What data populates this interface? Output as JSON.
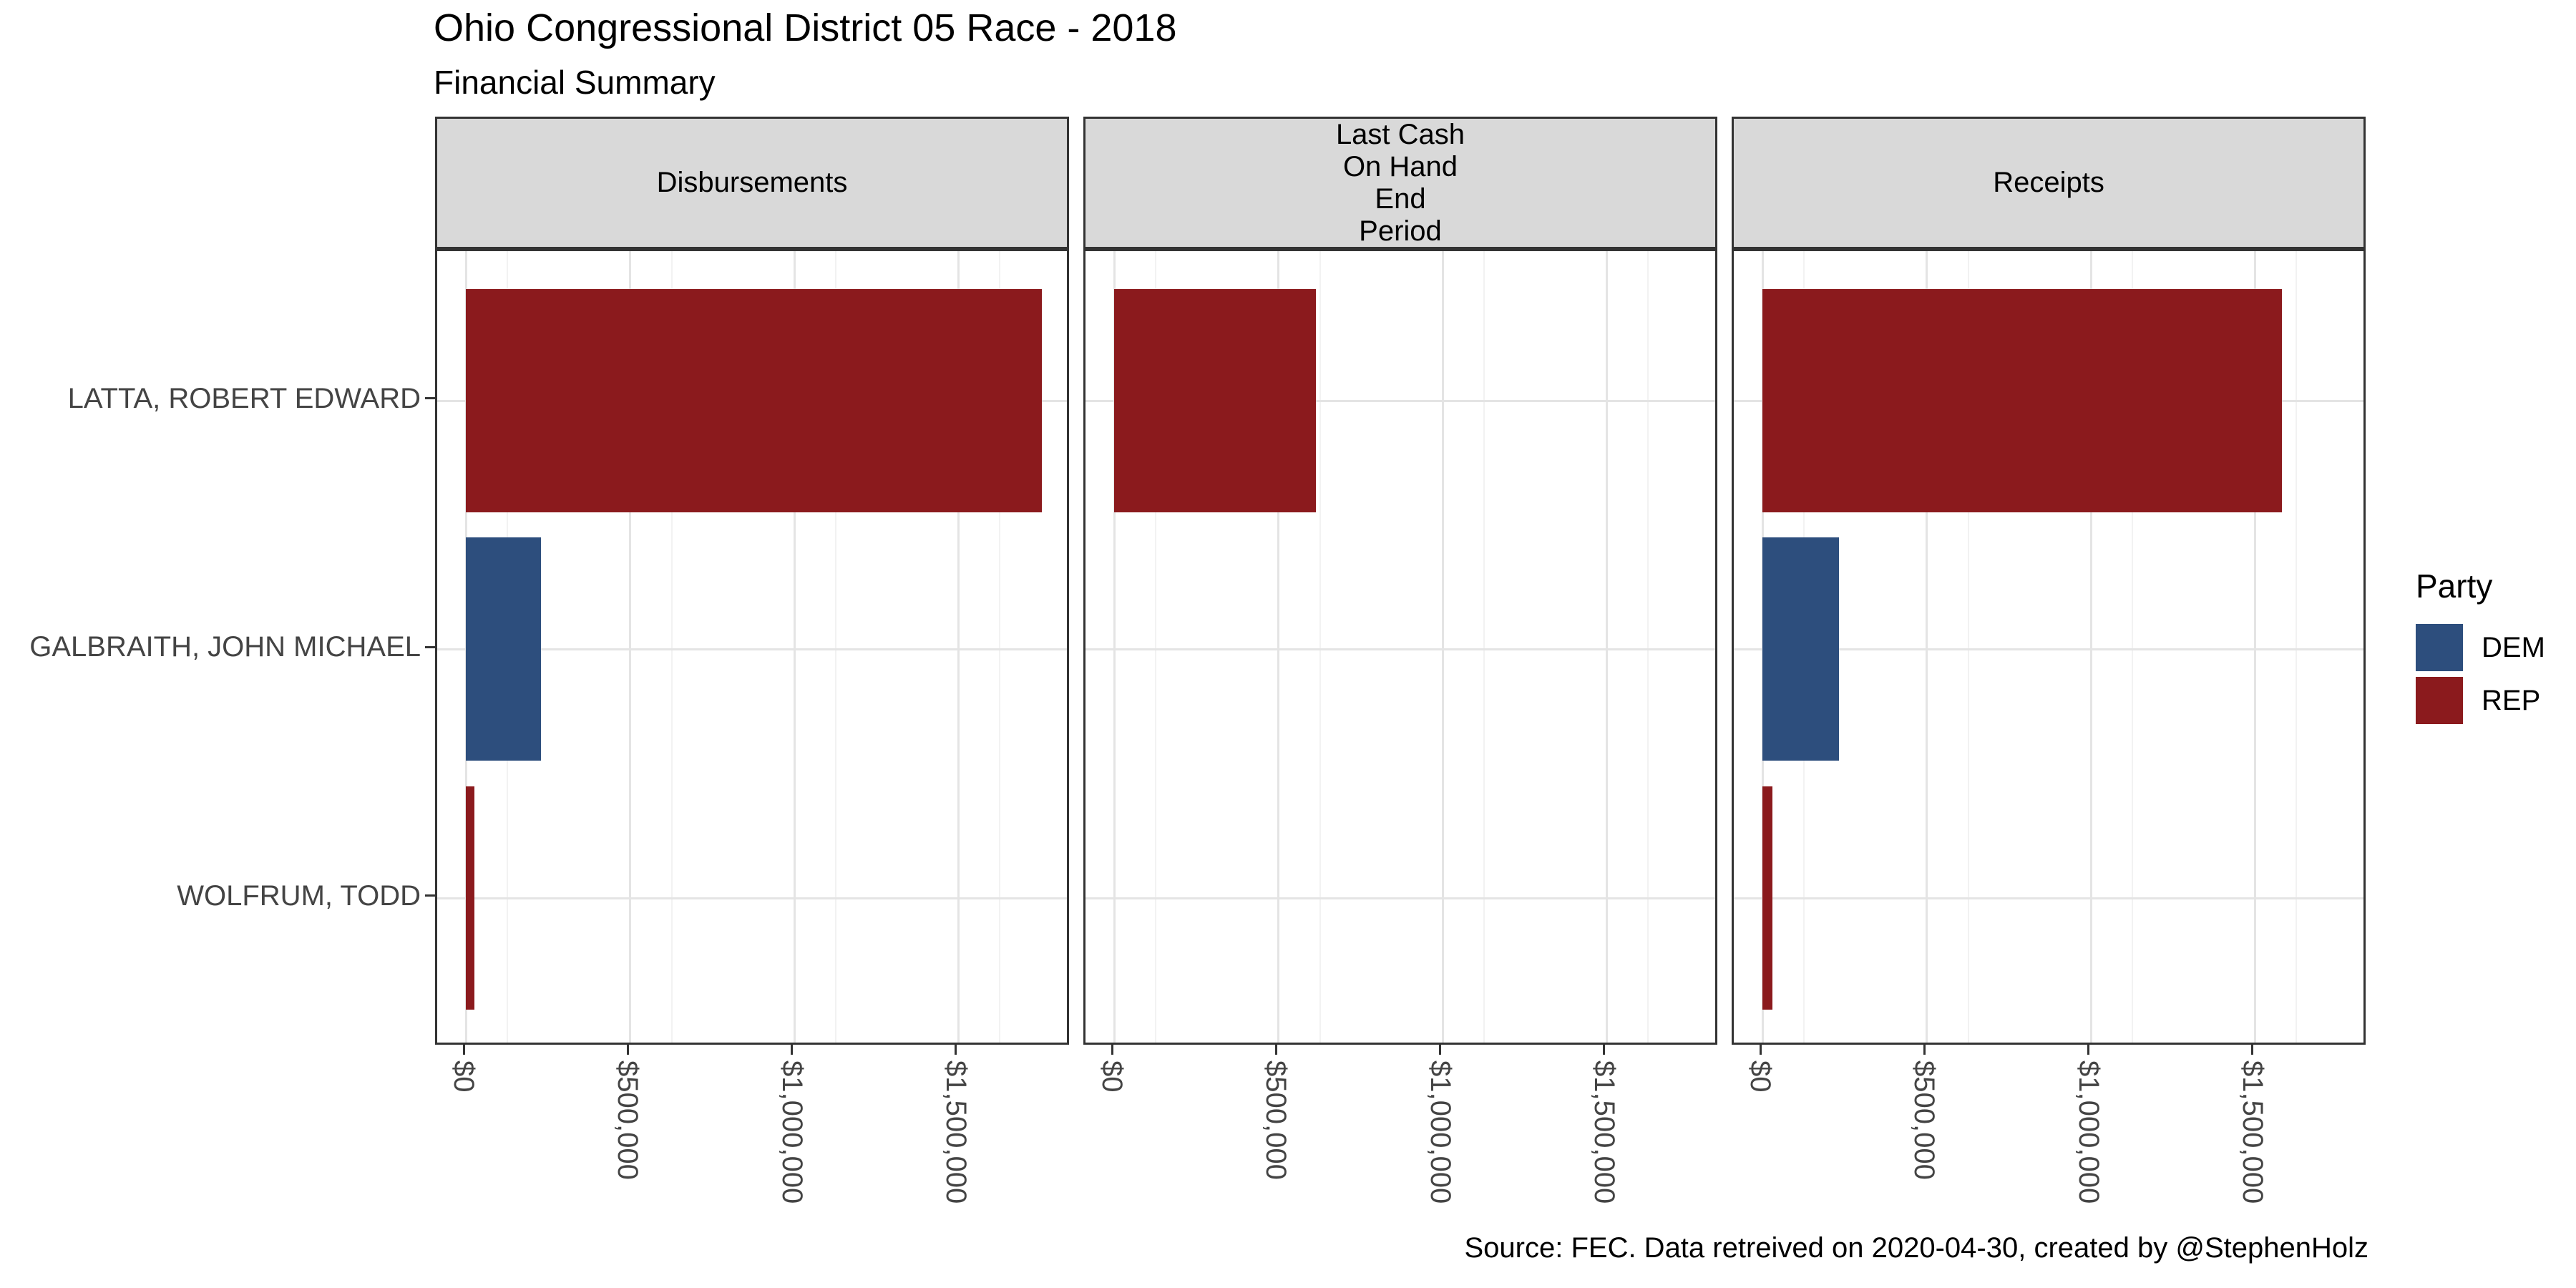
{
  "header": {
    "title": "Ohio Congressional District 05 Race - 2018",
    "subtitle": "Financial Summary"
  },
  "footer": {
    "caption": "Source: FEC. Data retreived on 2020-04-30, created by @StephenHolz"
  },
  "legend": {
    "title": "Party",
    "position": "right",
    "entries": [
      {
        "label": "DEM",
        "color": "#2D4E7D"
      },
      {
        "label": "REP",
        "color": "#8B1A1D"
      }
    ]
  },
  "chart_data": {
    "type": "bar",
    "orientation": "horizontal",
    "title": "Ohio Congressional District 05 Race - 2018",
    "subtitle": "Financial Summary",
    "caption": "Source: FEC. Data retreived on 2020-04-30, created by @StephenHolz",
    "grid": "major-and-minor",
    "legend_position": "right",
    "facets": [
      {
        "label": "Disbursements",
        "label_lines": [
          "Disbursements"
        ]
      },
      {
        "label": "Last Cash On Hand End Period",
        "label_lines": [
          "Last Cash",
          "On Hand",
          "End",
          "Period"
        ]
      },
      {
        "label": "Receipts",
        "label_lines": [
          "Receipts"
        ]
      }
    ],
    "categories": [
      "LATTA, ROBERT EDWARD",
      "GALBRAITH, JOHN MICHAEL",
      "WOLFRUM, TODD"
    ],
    "category_parties": [
      "REP",
      "DEM",
      "REP"
    ],
    "series": [
      {
        "facet": "Disbursements",
        "values": [
          1755000,
          230000,
          26000
        ]
      },
      {
        "facet": "Last Cash On Hand End Period",
        "values": [
          615000,
          0,
          0
        ]
      },
      {
        "facet": "Receipts",
        "values": [
          1583000,
          233000,
          30000
        ]
      }
    ],
    "x_ticks": [
      "$0",
      "$500,000",
      "$1,000,000",
      "$1,500,000"
    ],
    "x_tick_values": [
      0,
      500000,
      1000000,
      1500000
    ],
    "x_minor_step": 250000,
    "xlim": [
      0,
      1845000
    ],
    "party_colors": {
      "DEM": "#2D4E7D",
      "REP": "#8B1A1D"
    }
  }
}
